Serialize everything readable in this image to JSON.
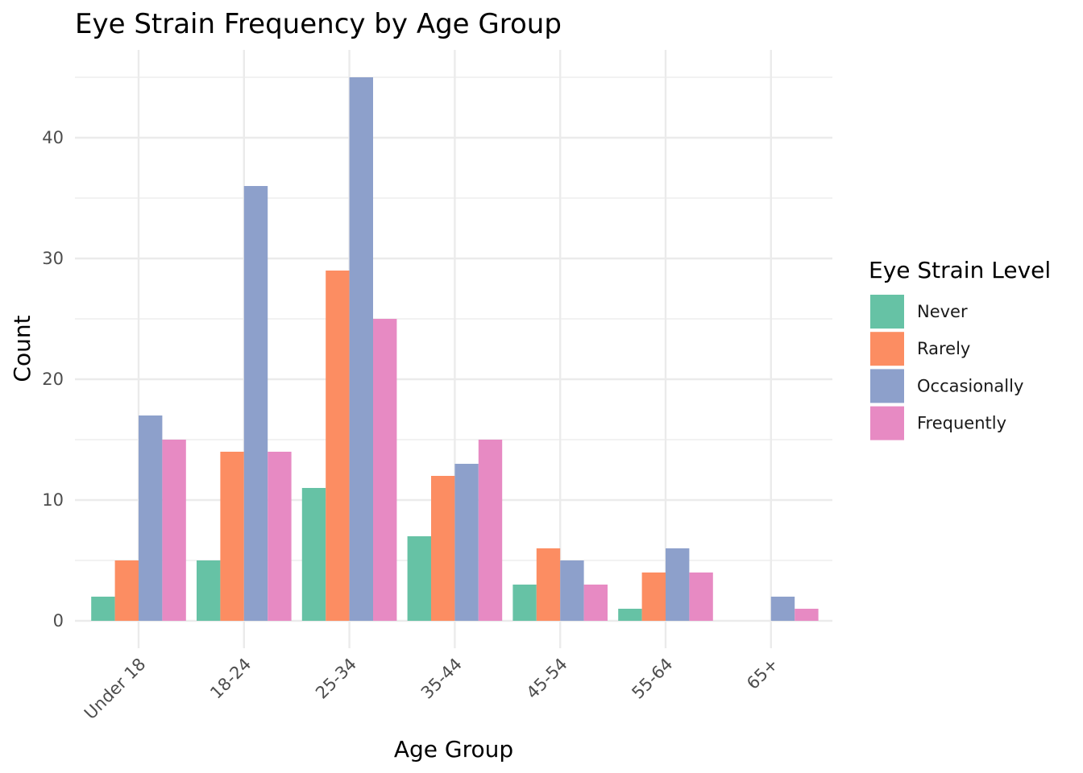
{
  "chart_data": {
    "type": "bar",
    "title": "Eye Strain Frequency by Age Group",
    "xlabel": "Age Group",
    "ylabel": "Count",
    "categories": [
      "Under 18",
      "18-24",
      "25-34",
      "35-44",
      "45-54",
      "55-64",
      "65+"
    ],
    "series": [
      {
        "name": "Never",
        "color": "#66c2a5",
        "values": [
          2,
          5,
          11,
          7,
          3,
          1,
          0
        ]
      },
      {
        "name": "Rarely",
        "color": "#fc8d62",
        "values": [
          5,
          14,
          29,
          12,
          6,
          4,
          0
        ]
      },
      {
        "name": "Occasionally",
        "color": "#8da0cb",
        "values": [
          17,
          36,
          45,
          13,
          5,
          6,
          2
        ]
      },
      {
        "name": "Frequently",
        "color": "#e78ac3",
        "values": [
          15,
          14,
          25,
          15,
          3,
          4,
          1
        ]
      }
    ],
    "ylim": [
      0,
      45
    ],
    "yticks": [
      0,
      10,
      20,
      30,
      40
    ],
    "grid": true,
    "legend": {
      "title": "Eye Strain Level",
      "position": "right"
    }
  }
}
